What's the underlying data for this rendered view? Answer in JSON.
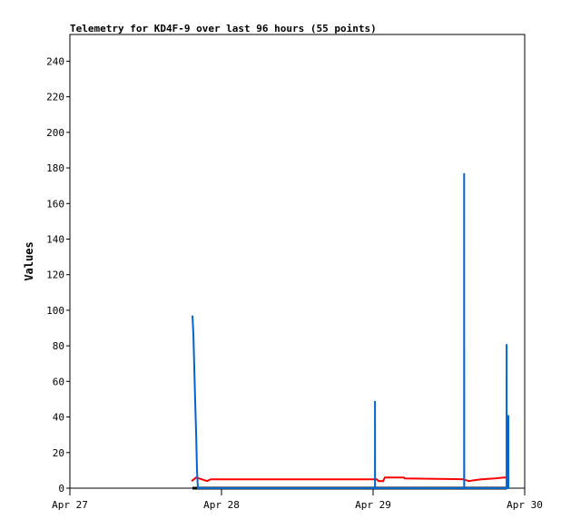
{
  "chart_data": {
    "type": "line",
    "title": "Telemetry for KD4F-9 over last 96 hours (55 points)",
    "xlabel": "",
    "ylabel": "Values",
    "ylim": [
      0,
      255
    ],
    "xlim": [
      "Apr 27 00:00",
      "Apr 30 00:00"
    ],
    "x_ticks": [
      "Apr 27",
      "Apr 28",
      "Apr 29",
      "Apr 30"
    ],
    "y_ticks": [
      0,
      20,
      40,
      60,
      80,
      100,
      120,
      140,
      160,
      180,
      200,
      220,
      240
    ],
    "grid": false,
    "series": [
      {
        "color": "#000000",
        "points": [
          [
            "Apr 27 19:24",
            0
          ],
          [
            "Apr 29 21:08",
            0
          ]
        ]
      },
      {
        "color": "#ff0000",
        "points": [
          [
            "Apr 27 19:16",
            4
          ],
          [
            "Apr 27 19:59",
            6
          ],
          [
            "Apr 27 20:51",
            5
          ],
          [
            "Apr 27 21:43",
            4
          ],
          [
            "Apr 27 22:17",
            5
          ],
          [
            "Apr 29 00:35",
            5
          ],
          [
            "Apr 29 00:52",
            4
          ],
          [
            "Apr 29 01:35",
            4
          ],
          [
            "Apr 29 01:52",
            6
          ],
          [
            "Apr 29 04:52",
            6
          ],
          [
            "Apr 29 05:00",
            5.5
          ],
          [
            "Apr 29 14:17",
            5
          ],
          [
            "Apr 29 15:09",
            4
          ],
          [
            "Apr 29 16:00",
            4.5
          ],
          [
            "Apr 29 17:09",
            5
          ],
          [
            "Apr 29 19:18",
            5.5
          ],
          [
            "Apr 29 20:43",
            6
          ],
          [
            "Apr 29 21:25",
            6
          ]
        ]
      },
      {
        "color": "#0066cc",
        "points": [
          [
            "Apr 27 19:24",
            97
          ],
          [
            "Apr 27 19:33",
            87
          ],
          [
            "Apr 27 19:41",
            68
          ],
          [
            "Apr 27 19:50",
            49
          ],
          [
            "Apr 27 19:59",
            30
          ],
          [
            "Apr 27 20:07",
            10
          ],
          [
            "Apr 27 20:16",
            0
          ],
          [
            "Apr 29 00:18",
            0
          ],
          [
            "Apr 29 00:18",
            49
          ],
          [
            "Apr 29 00:19",
            0
          ],
          [
            "Apr 29 14:25",
            0
          ],
          [
            "Apr 29 14:25",
            177
          ],
          [
            "Apr 29 14:26",
            0
          ],
          [
            "Apr 29 21:08",
            0
          ],
          [
            "Apr 29 21:08",
            81
          ],
          [
            "Apr 29 21:09",
            0
          ],
          [
            "Apr 29 21:25",
            0
          ],
          [
            "Apr 29 21:25",
            41
          ],
          [
            "Apr 29 21:26",
            0
          ]
        ]
      }
    ]
  }
}
